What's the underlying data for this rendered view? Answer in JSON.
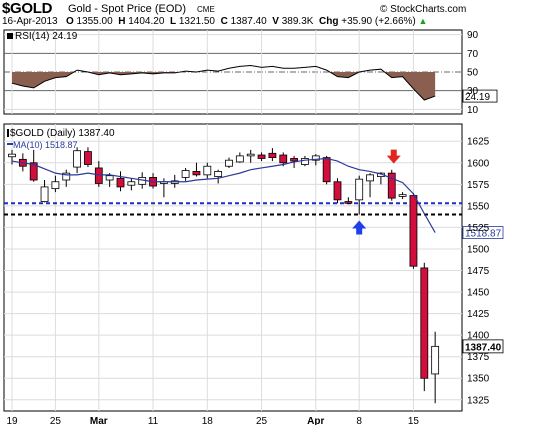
{
  "header": {
    "symbol": "$GOLD",
    "name": "Gold - Spot Price (EOD)",
    "exchange": "CME",
    "date": "16-Apr-2013",
    "watermark": "© StockCharts.com",
    "open_label": "O",
    "open": "1355.00",
    "high_label": "H",
    "high": "1404.20",
    "low_label": "L",
    "low": "1321.50",
    "close_label": "C",
    "close": "1387.40",
    "volume_label": "V",
    "volume": "389.3K",
    "change_label": "Chg",
    "change": "+35.90 (+2.66%)",
    "change_arrow": "▲"
  },
  "rsi_panel": {
    "label": "RSI(14)",
    "value": "24.19",
    "ticks": [
      "90",
      "70",
      "50",
      "30",
      "10"
    ],
    "levels": {
      "overbought": 70,
      "mid": 50,
      "oversold": 30
    },
    "ylim": [
      5,
      95
    ]
  },
  "price_panel": {
    "label": "$GOLD (Daily)",
    "value": "1387.40",
    "ma_label": "MA(10)",
    "ma_value": "1518.87",
    "last_tag": "1387.40",
    "ma_tag": "1518.87",
    "ticks": [
      "1625",
      "1600",
      "1575",
      "1550",
      "1525",
      "1500",
      "1475",
      "1450",
      "1425",
      "1400",
      "1375",
      "1350",
      "1325"
    ],
    "ylim": [
      1312,
      1645
    ]
  },
  "chart_data": {
    "type": "candlestick",
    "x_tick_labels": [
      {
        "label": "19",
        "index": 0
      },
      {
        "label": "25",
        "index": 4
      },
      {
        "label": "Mar",
        "index": 8
      },
      {
        "label": "11",
        "index": 13
      },
      {
        "label": "18",
        "index": 18
      },
      {
        "label": "25",
        "index": 23
      },
      {
        "label": "Apr",
        "index": 28
      },
      {
        "label": "8",
        "index": 32
      },
      {
        "label": "15",
        "index": 37
      }
    ],
    "candles": [
      {
        "o": 1607,
        "h": 1615,
        "l": 1598,
        "c": 1610
      },
      {
        "o": 1604,
        "h": 1611,
        "l": 1590,
        "c": 1596
      },
      {
        "o": 1600,
        "h": 1615,
        "l": 1578,
        "c": 1580
      },
      {
        "o": 1555,
        "h": 1580,
        "l": 1554,
        "c": 1572
      },
      {
        "o": 1570,
        "h": 1585,
        "l": 1566,
        "c": 1578
      },
      {
        "o": 1580,
        "h": 1592,
        "l": 1572,
        "c": 1588
      },
      {
        "o": 1595,
        "h": 1618,
        "l": 1588,
        "c": 1614
      },
      {
        "o": 1613,
        "h": 1618,
        "l": 1595,
        "c": 1598
      },
      {
        "o": 1594,
        "h": 1602,
        "l": 1572,
        "c": 1576
      },
      {
        "o": 1580,
        "h": 1588,
        "l": 1572,
        "c": 1585
      },
      {
        "o": 1582,
        "h": 1590,
        "l": 1567,
        "c": 1572
      },
      {
        "o": 1574,
        "h": 1582,
        "l": 1568,
        "c": 1578
      },
      {
        "o": 1575,
        "h": 1589,
        "l": 1570,
        "c": 1583
      },
      {
        "o": 1583,
        "h": 1588,
        "l": 1570,
        "c": 1573
      },
      {
        "o": 1576,
        "h": 1582,
        "l": 1560,
        "c": 1578
      },
      {
        "o": 1576,
        "h": 1586,
        "l": 1571,
        "c": 1579
      },
      {
        "o": 1583,
        "h": 1594,
        "l": 1579,
        "c": 1591
      },
      {
        "o": 1590,
        "h": 1600,
        "l": 1584,
        "c": 1586
      },
      {
        "o": 1586,
        "h": 1600,
        "l": 1582,
        "c": 1596
      },
      {
        "o": 1584,
        "h": 1592,
        "l": 1576,
        "c": 1590
      },
      {
        "o": 1596,
        "h": 1606,
        "l": 1594,
        "c": 1603
      },
      {
        "o": 1601,
        "h": 1612,
        "l": 1600,
        "c": 1608
      },
      {
        "o": 1608,
        "h": 1615,
        "l": 1600,
        "c": 1610
      },
      {
        "o": 1609,
        "h": 1612,
        "l": 1602,
        "c": 1605
      },
      {
        "o": 1611,
        "h": 1617,
        "l": 1602,
        "c": 1606
      },
      {
        "o": 1609,
        "h": 1612,
        "l": 1596,
        "c": 1600
      },
      {
        "o": 1605,
        "h": 1608,
        "l": 1594,
        "c": 1602
      },
      {
        "o": 1598,
        "h": 1608,
        "l": 1596,
        "c": 1605
      },
      {
        "o": 1603,
        "h": 1610,
        "l": 1597,
        "c": 1608
      },
      {
        "o": 1606,
        "h": 1608,
        "l": 1575,
        "c": 1578
      },
      {
        "o": 1578,
        "h": 1582,
        "l": 1553,
        "c": 1557
      },
      {
        "o": 1555,
        "h": 1560,
        "l": 1552,
        "c": 1553
      },
      {
        "o": 1557,
        "h": 1585,
        "l": 1540,
        "c": 1581
      },
      {
        "o": 1579,
        "h": 1588,
        "l": 1560,
        "c": 1586
      },
      {
        "o": 1584,
        "h": 1589,
        "l": 1575,
        "c": 1588
      },
      {
        "o": 1588,
        "h": 1592,
        "l": 1556,
        "c": 1559
      },
      {
        "o": 1561,
        "h": 1566,
        "l": 1558,
        "c": 1563
      },
      {
        "o": 1562,
        "h": 1565,
        "l": 1477,
        "c": 1480
      },
      {
        "o": 1478,
        "h": 1484,
        "l": 1335,
        "c": 1350
      },
      {
        "o": 1355,
        "h": 1404,
        "l": 1321,
        "c": 1387
      }
    ],
    "ma10": [
      1602,
      1600,
      1598,
      1593,
      1588,
      1586,
      1586,
      1588,
      1586,
      1586,
      1584,
      1582,
      1580,
      1578,
      1578,
      1578,
      1578,
      1580,
      1581,
      1582,
      1585,
      1588,
      1592,
      1594,
      1596,
      1598,
      1601,
      1603,
      1604,
      1605,
      1602,
      1596,
      1592,
      1590,
      1587,
      1582,
      1577,
      1564,
      1541,
      1519
    ],
    "rsi": [
      38,
      35,
      33,
      40,
      44,
      45,
      52,
      50,
      47,
      49,
      47,
      48,
      49,
      48,
      49,
      49,
      51,
      50,
      52,
      51,
      54,
      56,
      57,
      55,
      56,
      54,
      54,
      55,
      56,
      52,
      45,
      44,
      50,
      52,
      53,
      44,
      45,
      32,
      20,
      24.19
    ],
    "support_lines": [
      1553,
      1540
    ],
    "arrows": [
      {
        "index": 35,
        "direction": "down",
        "color": "#e0281e"
      },
      {
        "index": 32,
        "direction": "up",
        "color": "#1f40e8"
      }
    ],
    "colors": {
      "up_candle": "#ffffff",
      "down_candle": "#d10e3c",
      "ma_line": "#2a3a9a",
      "rsi_fill": "#8a5f4f",
      "support_blue": "#1c2cc9",
      "support_black": "#000000"
    }
  }
}
